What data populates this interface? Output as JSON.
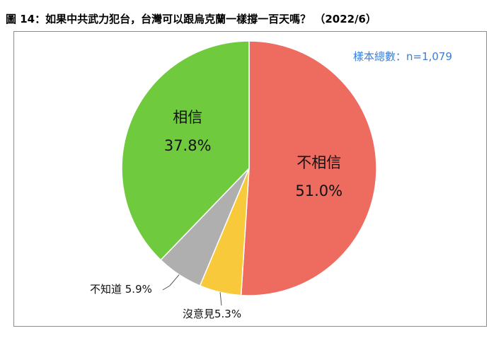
{
  "title": "圖 14：如果中共武力犯台，台灣可以跟烏克蘭一樣撐一百天嗎？ （2022/6）",
  "sample_note": "樣本總數：n=1,079",
  "chart_data": {
    "type": "pie",
    "title": "圖 14：如果中共武力犯台，台灣可以跟烏克蘭一樣撐一百天嗎？ （2022/6）",
    "slices": [
      {
        "name": "不相信",
        "value": 51.0,
        "label_pct": "51.0%",
        "color": "#ee6b60"
      },
      {
        "name": "沒意見",
        "value": 5.3,
        "label_pct": "5.3%",
        "color": "#f7c93b"
      },
      {
        "name": "不知道",
        "value": 5.9,
        "label_pct": "5.9%",
        "color": "#afafaf"
      },
      {
        "name": "相信",
        "value": 37.8,
        "label_pct": "37.8%",
        "color": "#6fcb3d"
      }
    ],
    "outside_labels": {
      "no_opinion": "沒意見5.3%",
      "dont_know": "不知道 5.9%"
    },
    "start_angle_deg": 0,
    "direction": "clockwise"
  }
}
